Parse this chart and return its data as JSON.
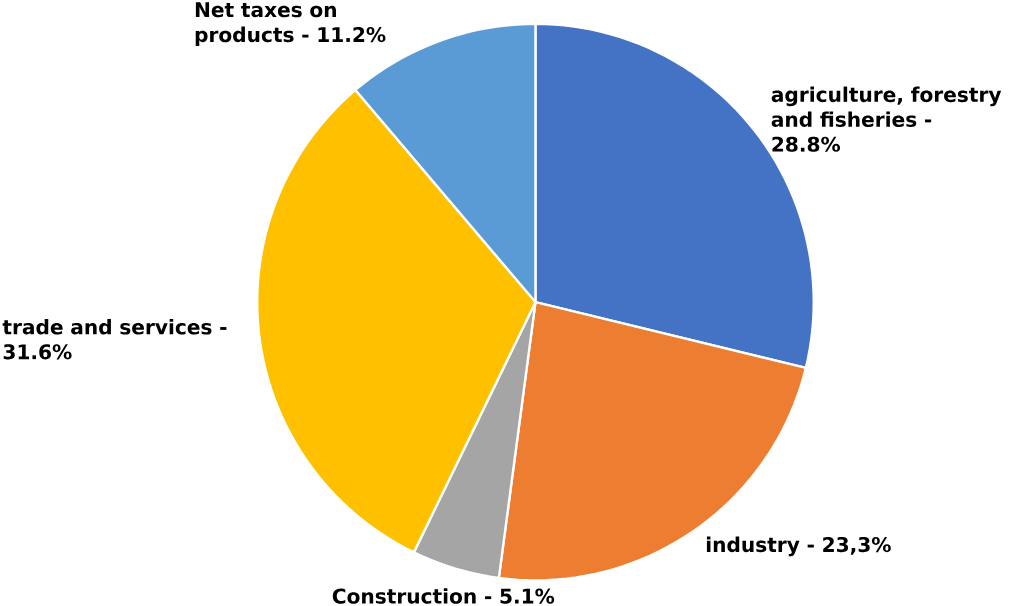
{
  "chart_data": {
    "type": "pie",
    "categories": [
      "agriculture, forestry and fisheries - 28.8%",
      "industry - 23,3%",
      "Construction - 5.1%",
      "trade and services - 31.6%",
      "Net taxes on products - 11.2%"
    ],
    "values": [
      28.8,
      23.3,
      5.1,
      31.6,
      11.2
    ],
    "colors": [
      "#4472c4",
      "#ed7d31",
      "#a5a5a5",
      "#ffc000",
      "#5b9bd5"
    ]
  }
}
